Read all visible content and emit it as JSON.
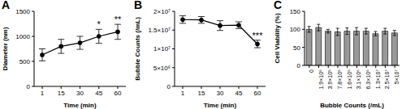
{
  "chart_data": [
    {
      "type": "line",
      "title": "A",
      "x_label": "Time (min)",
      "y_label": "Diameter (nm)",
      "categories": [
        "1",
        "15",
        "30",
        "45",
        "60"
      ],
      "values": [
        630,
        800,
        870,
        1000,
        1090
      ],
      "errors": [
        120,
        140,
        130,
        140,
        150
      ],
      "ylim": [
        0,
        1500
      ],
      "yticks": [
        0,
        500,
        1000,
        1500
      ],
      "color": "#000000",
      "marker": "circle",
      "annotations": [
        null,
        null,
        null,
        "*",
        "**"
      ]
    },
    {
      "type": "line",
      "title": "B",
      "x_label": "Time (min)",
      "y_label": "Bubble Counts (/mL)",
      "categories": [
        "1",
        "15",
        "30",
        "45",
        "60"
      ],
      "values": [
        17800000,
        17700000,
        16200000,
        16300000,
        11300000
      ],
      "errors": [
        1000000,
        900000,
        1300000,
        900000,
        1000000
      ],
      "ylim": [
        0,
        20000000
      ],
      "yticks": [
        0,
        {
          "value": 5000000,
          "label": "5×10⁶"
        },
        {
          "value": 10000000,
          "label": "1×10⁷"
        },
        {
          "value": 15000000,
          "label": "1.5×10⁷"
        },
        {
          "value": 20000000,
          "label": "2×10⁷"
        }
      ],
      "color": "#000000",
      "marker": "circle",
      "annotations": [
        null,
        null,
        null,
        null,
        "***"
      ]
    },
    {
      "type": "bar",
      "title": "C",
      "x_label": "Bubble Counts (/mL)",
      "y_label": "Cell Viability (%)",
      "categories": [
        "0",
        "1.9×10⁵",
        "3.9×10⁵",
        "7.8×10⁵",
        "1.6×10⁶",
        "3.1×10⁶",
        "6.3×10⁶",
        "1.3×10⁷",
        "2.5×10⁷",
        "5×10⁷"
      ],
      "values": [
        100,
        105,
        95,
        93,
        95,
        95,
        95,
        88,
        95,
        90
      ],
      "errors": [
        8,
        9,
        5,
        10,
        9,
        10,
        8,
        6,
        8,
        7
      ],
      "ylim": [
        0,
        150
      ],
      "yticks": [
        0,
        50,
        100,
        150
      ],
      "color": "#999999"
    }
  ]
}
